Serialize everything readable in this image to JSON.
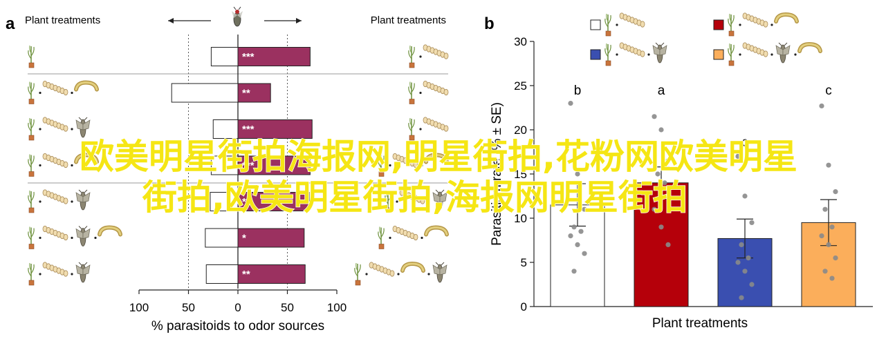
{
  "panels": {
    "a": {
      "letter": "a",
      "left_header": "Plant treatments",
      "right_header": "Plant treatments",
      "xlabel": "% parasitoids to odor sources",
      "x_ticks": [
        "100",
        "50",
        "0",
        "50",
        "100"
      ]
    },
    "b": {
      "letter": "b",
      "xlabel": "Plant treatments",
      "ylabel": "Parasitism rate (% ± SE)",
      "y_ticks": [
        "0",
        "5",
        "10",
        "15",
        "20",
        "25",
        "30"
      ]
    }
  },
  "watermark": {
    "line1": "欧美明星街拍海报网,明星街拍,花粉网欧美明星",
    "line2": "街拍,欧美明星街拍,海报网明星街拍"
  },
  "chart_data": [
    {
      "type": "bar",
      "orientation": "horizontal",
      "panel": "a",
      "xlim": [
        -100,
        100
      ],
      "gridlines": [
        -50,
        50
      ],
      "colors": {
        "right_bar": "#9b3160",
        "left_bar": "#ffffff"
      },
      "rows": [
        {
          "left": 27,
          "right": 73,
          "sig": "***",
          "left_icons": [
            "plant-icon"
          ],
          "right_icons": [
            "eggs-icon",
            "plant-icon"
          ]
        },
        {
          "left": 67,
          "right": 33,
          "sig": "**",
          "left_icons": [
            "plant-icon",
            "eggs-icon",
            "larva-icon"
          ],
          "right_icons": [
            "eggs-icon",
            "plant-icon"
          ]
        },
        {
          "left": 25,
          "right": 75,
          "sig": "***",
          "left_icons": [
            "plant-icon",
            "eggs-icon",
            "moth-icon"
          ],
          "right_icons": [
            "eggs-icon",
            "plant-icon"
          ]
        },
        {
          "left": 27,
          "right": 73,
          "sig": "***",
          "left_icons": [
            "plant-icon",
            "eggs-icon",
            "larva-icon"
          ],
          "right_icons": [
            "larva-icon",
            "eggs-icon",
            "plant-icon"
          ]
        },
        {
          "left": 28,
          "right": 72,
          "sig": "**",
          "left_icons": [
            "plant-icon",
            "eggs-icon",
            "moth-icon"
          ],
          "right_icons": [
            "moth-icon",
            "eggs-icon",
            "plant-icon"
          ]
        },
        {
          "left": 33,
          "right": 67,
          "sig": "*",
          "left_icons": [
            "plant-icon",
            "eggs-icon",
            "moth-icon",
            "larva-icon"
          ],
          "right_icons": [
            "larva-icon",
            "eggs-icon",
            "plant-icon"
          ]
        },
        {
          "left": 32,
          "right": 68,
          "sig": "**",
          "left_icons": [
            "plant-icon",
            "eggs-icon",
            "moth-icon"
          ],
          "right_icons": [
            "moth-icon",
            "larva-icon",
            "eggs-icon",
            "plant-icon"
          ]
        }
      ]
    },
    {
      "type": "bar",
      "panel": "b",
      "ylim": [
        0,
        30
      ],
      "legend_position": "top",
      "series": [
        {
          "value": 11.5,
          "se": 2.4,
          "letter": "b",
          "color": "#ffffff",
          "icons": [
            "plant-icon",
            "eggs-icon"
          ],
          "points": [
            23,
            15,
            11,
            9,
            8.5,
            8,
            7,
            6,
            4
          ]
        },
        {
          "value": 14,
          "se": 1.8,
          "letter": "a",
          "color": "#b5000a",
          "icons": [
            "plant-icon",
            "eggs-icon",
            "larva-icon"
          ],
          "points": [
            21.5,
            20,
            16.5,
            15,
            14,
            11,
            9,
            7
          ]
        },
        {
          "value": 7.7,
          "se": 2.2,
          "letter": "c",
          "color": "#3a4fb0",
          "icons": [
            "plant-icon",
            "eggs-icon",
            "moth-icon"
          ],
          "points": [
            17,
            12.5,
            9.5,
            7,
            5.5,
            5,
            4,
            2.5,
            1
          ]
        },
        {
          "value": 9.5,
          "se": 2.6,
          "letter": "c",
          "color": "#fbae5b",
          "icons": [
            "plant-icon",
            "eggs-icon",
            "moth-icon",
            "larva-icon"
          ],
          "points": [
            22.7,
            16,
            13,
            11,
            9,
            8,
            7,
            5.5,
            4,
            3.2
          ]
        }
      ]
    }
  ]
}
